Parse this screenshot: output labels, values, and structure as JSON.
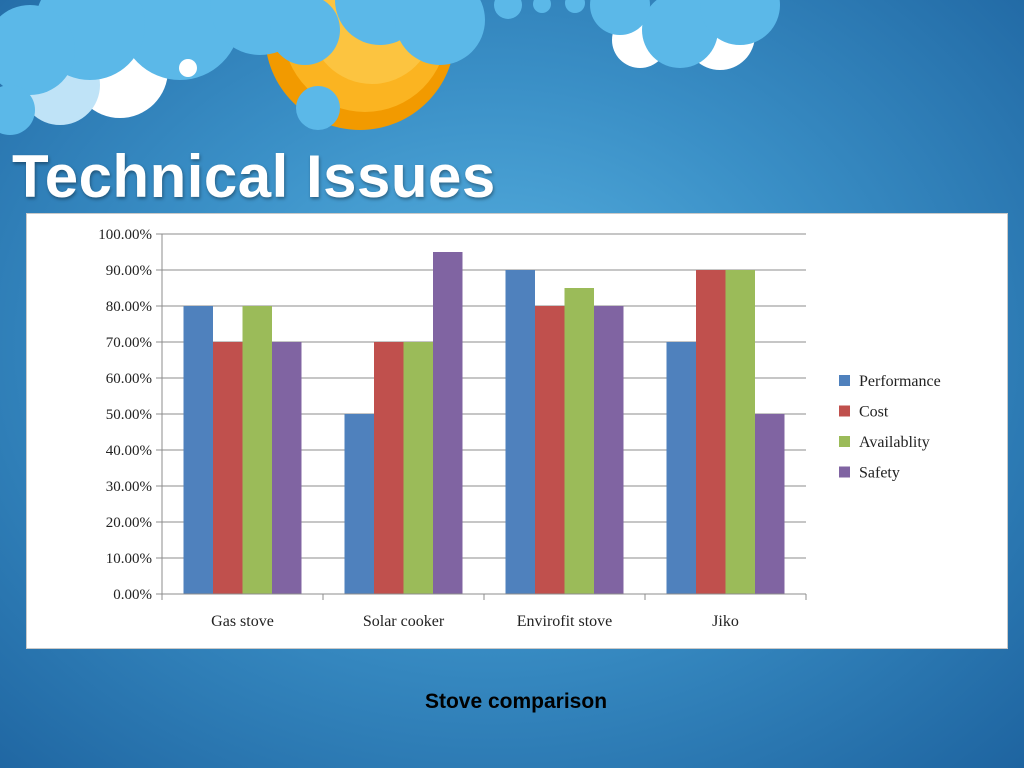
{
  "slide": {
    "title": "Technical Issues",
    "caption": "Stove comparison"
  },
  "colors": {
    "performance": "#4f81bd",
    "cost": "#c0504d",
    "availability": "#9bbb59",
    "safety": "#8064a2",
    "sun": "#f5a800",
    "cloud": "#5bb8e8"
  },
  "chart_data": {
    "type": "bar",
    "categories": [
      "Gas stove",
      "Solar cooker",
      "Envirofit stove",
      "Jiko"
    ],
    "series": [
      {
        "name": "Performance",
        "values": [
          0.8,
          0.5,
          0.9,
          0.7
        ]
      },
      {
        "name": "Cost",
        "values": [
          0.7,
          0.7,
          0.8,
          0.9
        ]
      },
      {
        "name": "Availablity",
        "values": [
          0.8,
          0.7,
          0.85,
          0.9
        ]
      },
      {
        "name": "Safety",
        "values": [
          0.7,
          0.95,
          0.8,
          0.5
        ]
      }
    ],
    "yticks": [
      "0.00%",
      "10.00%",
      "20.00%",
      "30.00%",
      "40.00%",
      "50.00%",
      "60.00%",
      "70.00%",
      "80.00%",
      "90.00%",
      "100.00%"
    ],
    "ylim": [
      0,
      1
    ],
    "grid": true,
    "legend": "right"
  }
}
